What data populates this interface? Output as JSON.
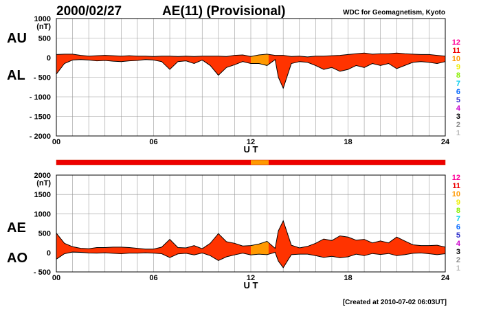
{
  "header": {
    "date": "2000/02/27",
    "title": "AE(11) (Provisional)",
    "source": "WDC for Geomagnetism, Kyoto"
  },
  "footer": {
    "created": "[Created at 2010-07-02 06:03UT]"
  },
  "colors": {
    "index_fill": "#ff3300",
    "index_fill_alt": "#ff9900",
    "outline": "#000000",
    "grid": "#999999"
  },
  "station_scale": {
    "levels": [
      "12",
      "11",
      "10",
      "9",
      "8",
      "7",
      "6",
      "5",
      "4",
      "3",
      "2",
      "1"
    ],
    "colors": [
      "#ff0099",
      "#ee0000",
      "#ff9900",
      "#eeee00",
      "#88ee00",
      "#00ccee",
      "#0066ff",
      "#3333cc",
      "#cc00cc",
      "#000000",
      "#888888",
      "#bbbbbb"
    ]
  },
  "coverage_bar": {
    "default_count": "11",
    "segments": [
      {
        "from": 0,
        "to": 12,
        "count": "11"
      },
      {
        "from": 12,
        "to": 13.1,
        "count": "10"
      },
      {
        "from": 13.1,
        "to": 24,
        "count": "11"
      }
    ]
  },
  "chart_data": [
    {
      "type": "area",
      "left_labels": [
        "AU",
        "AL"
      ],
      "unit_label": "(nT)",
      "xlabel": "U T",
      "x_ticks": [
        "00",
        "06",
        "12",
        "18",
        "24"
      ],
      "xlim": [
        0,
        24
      ],
      "ylim": [
        -2000,
        1000
      ],
      "y_ticks": [
        {
          "value": 1000,
          "label": "1000"
        },
        {
          "value": 500,
          "label": "500"
        },
        {
          "value": 0,
          "label": "0"
        },
        {
          "value": -500,
          "label": "- 500"
        },
        {
          "value": -1000,
          "label": "- 1000"
        },
        {
          "value": -1500,
          "label": "- 1500"
        },
        {
          "value": -2000,
          "label": "- 2000"
        }
      ],
      "grid": true,
      "series": [
        {
          "name": "AU",
          "x": [
            0,
            0.5,
            1,
            1.5,
            2,
            2.5,
            3,
            3.5,
            4,
            4.5,
            5,
            5.5,
            6,
            6.5,
            7,
            7.5,
            8,
            8.5,
            9,
            9.5,
            10,
            10.5,
            11,
            11.5,
            12,
            12.5,
            13,
            13.5,
            14,
            14.5,
            15,
            15.5,
            16,
            16.5,
            17,
            17.5,
            18,
            18.5,
            19,
            19.5,
            20,
            20.5,
            21,
            21.5,
            22,
            22.5,
            23,
            23.5,
            24
          ],
          "values": [
            80,
            90,
            90,
            60,
            40,
            50,
            60,
            50,
            40,
            50,
            40,
            40,
            30,
            40,
            40,
            30,
            40,
            30,
            40,
            40,
            40,
            30,
            60,
            70,
            30,
            70,
            90,
            60,
            60,
            30,
            40,
            20,
            40,
            40,
            50,
            60,
            80,
            100,
            120,
            90,
            100,
            100,
            120,
            100,
            90,
            80,
            80,
            60,
            40
          ]
        },
        {
          "name": "AL",
          "x": [
            0,
            0.5,
            1,
            1.5,
            2,
            2.5,
            3,
            3.5,
            4,
            4.5,
            5,
            5.5,
            6,
            6.5,
            7,
            7.5,
            8,
            8.5,
            9,
            9.5,
            10,
            10.5,
            11,
            11.5,
            12,
            12.5,
            13,
            13.5,
            13.7,
            14,
            14.5,
            15,
            15.5,
            16,
            16.5,
            17,
            17.5,
            18,
            18.5,
            19,
            19.5,
            20,
            20.5,
            21,
            21.5,
            22,
            22.5,
            23,
            23.5,
            24
          ],
          "values": [
            -420,
            -150,
            -60,
            -50,
            -60,
            -80,
            -70,
            -90,
            -100,
            -80,
            -70,
            -50,
            -60,
            -100,
            -300,
            -100,
            -80,
            -150,
            -60,
            -200,
            -450,
            -250,
            -180,
            -100,
            -150,
            -150,
            -200,
            -50,
            -500,
            -780,
            -150,
            -100,
            -120,
            -200,
            -300,
            -250,
            -350,
            -300,
            -200,
            -250,
            -150,
            -200,
            -150,
            -280,
            -200,
            -120,
            -100,
            -120,
            -150,
            -100
          ]
        }
      ]
    },
    {
      "type": "area",
      "left_labels": [
        "AE",
        "AO"
      ],
      "unit_label": "(nT)",
      "xlabel": "U T",
      "x_ticks": [
        "00",
        "06",
        "12",
        "18",
        "24"
      ],
      "xlim": [
        0,
        24
      ],
      "ylim": [
        -500,
        2000
      ],
      "y_ticks": [
        {
          "value": 2000,
          "label": "2000"
        },
        {
          "value": 1500,
          "label": "1500"
        },
        {
          "value": 1000,
          "label": "1000"
        },
        {
          "value": 500,
          "label": "500"
        },
        {
          "value": 0,
          "label": "0"
        },
        {
          "value": -500,
          "label": "- 500"
        }
      ],
      "grid": true,
      "series": [
        {
          "name": "AE",
          "x": [
            0,
            0.5,
            1,
            1.5,
            2,
            2.5,
            3,
            3.5,
            4,
            4.5,
            5,
            5.5,
            6,
            6.5,
            7,
            7.5,
            8,
            8.5,
            9,
            9.5,
            10,
            10.5,
            11,
            11.5,
            12,
            12.5,
            13,
            13.5,
            13.7,
            14,
            14.5,
            15,
            15.5,
            16,
            16.5,
            17,
            17.5,
            18,
            18.5,
            19,
            19.5,
            20,
            20.5,
            21,
            21.5,
            22,
            22.5,
            23,
            23.5,
            24
          ],
          "values": [
            500,
            240,
            150,
            110,
            100,
            130,
            130,
            140,
            140,
            130,
            110,
            90,
            90,
            140,
            340,
            130,
            120,
            180,
            100,
            240,
            490,
            280,
            240,
            170,
            180,
            220,
            290,
            110,
            560,
            820,
            190,
            120,
            160,
            240,
            350,
            310,
            430,
            400,
            320,
            340,
            250,
            300,
            250,
            400,
            300,
            200,
            180,
            180,
            190,
            140
          ]
        },
        {
          "name": "AO",
          "x": [
            0,
            0.5,
            1,
            1.5,
            2,
            2.5,
            3,
            3.5,
            4,
            4.5,
            5,
            5.5,
            6,
            6.5,
            7,
            7.5,
            8,
            8.5,
            9,
            9.5,
            10,
            10.5,
            11,
            11.5,
            12,
            12.5,
            13,
            13.5,
            13.7,
            14,
            14.5,
            15,
            15.5,
            16,
            16.5,
            17,
            17.5,
            18,
            18.5,
            19,
            19.5,
            20,
            20.5,
            21,
            21.5,
            22,
            22.5,
            23,
            23.5,
            24
          ],
          "values": [
            -170,
            -30,
            15,
            5,
            -10,
            -15,
            -5,
            -20,
            -30,
            -15,
            -15,
            -5,
            -15,
            -30,
            -130,
            -35,
            -20,
            -60,
            -10,
            -80,
            -205,
            -110,
            -60,
            -15,
            -60,
            -40,
            -55,
            5,
            -220,
            -390,
            -55,
            -40,
            -40,
            -80,
            -125,
            -95,
            -135,
            -110,
            -40,
            -80,
            -25,
            -50,
            -25,
            -80,
            -55,
            -20,
            -10,
            -30,
            -55,
            -30
          ]
        }
      ]
    }
  ]
}
